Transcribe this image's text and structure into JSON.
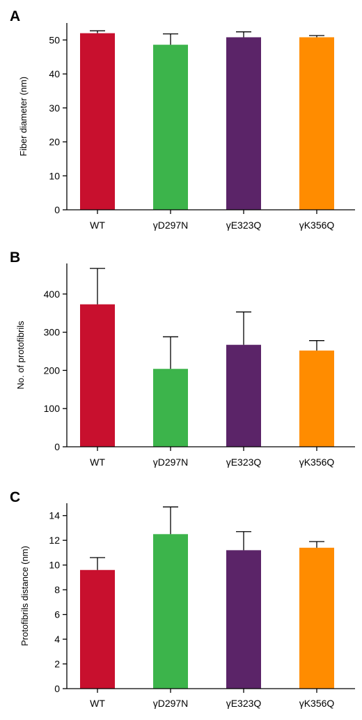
{
  "chart_data": [
    {
      "panel": "A",
      "type": "bar",
      "ylabel": "Fiber diameter (nm)",
      "categories": [
        "WT",
        "γD297N",
        "γE323Q",
        "γK356Q"
      ],
      "values": [
        52.0,
        48.6,
        50.8,
        50.8
      ],
      "errors": [
        0.7,
        3.2,
        1.6,
        0.5
      ],
      "ylim": [
        0,
        55
      ],
      "yticks": [
        0,
        10,
        20,
        30,
        40,
        50
      ]
    },
    {
      "panel": "B",
      "type": "bar",
      "ylabel": "No. of protofibrils",
      "categories": [
        "WT",
        "γD297N",
        "γE323Q",
        "γK356Q"
      ],
      "values": [
        373,
        204,
        267,
        252
      ],
      "errors": [
        94,
        84,
        86,
        26
      ],
      "ylim": [
        0,
        480
      ],
      "yticks": [
        0,
        100,
        200,
        300,
        400
      ]
    },
    {
      "panel": "C",
      "type": "bar",
      "ylabel": "Protofibrils distance (nm)",
      "categories": [
        "WT",
        "γD297N",
        "γE323Q",
        "γK356Q"
      ],
      "values": [
        9.6,
        12.5,
        11.2,
        11.4
      ],
      "errors": [
        1.0,
        2.2,
        1.5,
        0.5
      ],
      "ylim": [
        0,
        15
      ],
      "yticks": [
        0,
        2,
        4,
        6,
        8,
        10,
        12,
        14
      ]
    }
  ],
  "colors": {
    "WT": "#c8102e",
    "γD297N": "#3cb44b",
    "γE323Q": "#5b2468",
    "γK356Q": "#ff8c00"
  }
}
